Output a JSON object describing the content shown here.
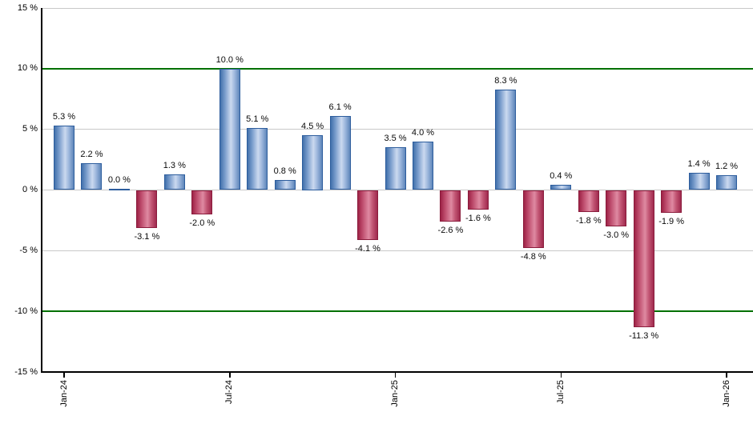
{
  "chart_data": {
    "type": "bar",
    "title": "",
    "xlabel": "",
    "ylabel": "",
    "unit": "%",
    "ylim": [
      -15,
      15
    ],
    "y_ticks": [
      15,
      10,
      5,
      0,
      -5,
      -10,
      -15
    ],
    "y_tick_labels": [
      "15 %",
      "10 %",
      "5 %",
      "0 %",
      "-5 %",
      "-10 %",
      "-15 %"
    ],
    "x_tick_labels": [
      "Jan-24",
      "Jul-24",
      "Jan-25",
      "Jul-25",
      "Jan-26"
    ],
    "x_tick_bar_indices": [
      0,
      6,
      12,
      18,
      24
    ],
    "values": [
      5.3,
      2.2,
      0.0,
      -3.1,
      1.3,
      -2.0,
      10.0,
      5.1,
      0.8,
      4.5,
      6.1,
      -4.1,
      3.5,
      4.0,
      -2.6,
      -1.6,
      8.3,
      -4.8,
      0.4,
      -1.8,
      -3.0,
      -11.3,
      -1.9,
      1.4,
      1.2
    ],
    "bar_labels": [
      "5.3 %",
      "2.2 %",
      "0.0 %",
      "-3.1 %",
      "1.3 %",
      "-2.0 %",
      "10.0 %",
      "5.1 %",
      "0.8 %",
      "4.5 %",
      "6.1 %",
      "-4.1 %",
      "3.5 %",
      "4.0 %",
      "-2.6 %",
      "-1.6 %",
      "8.3 %",
      "-4.8 %",
      "0.4 %",
      "-1.8 %",
      "-3.0 %",
      "-11.3 %",
      "-1.9 %",
      "1.4 %",
      "1.2 %"
    ],
    "grid": true,
    "legend": false,
    "colors": {
      "gridline": "#c9c9c9",
      "threshold_line": "#007000",
      "threshold_values": [
        10,
        -10
      ],
      "axis": "#000000",
      "text": "#000000",
      "positive_border": "#2d5d9d",
      "positive_gradient": [
        "#4170ab",
        "#7b9ecd",
        "#cbd9ef",
        "#9cb6dc",
        "#5e86ba"
      ],
      "negative_border": "#8a1c3c",
      "negative_gradient": [
        "#9e2246",
        "#c05070",
        "#df8aa2",
        "#c25674",
        "#a02a4e"
      ]
    }
  }
}
